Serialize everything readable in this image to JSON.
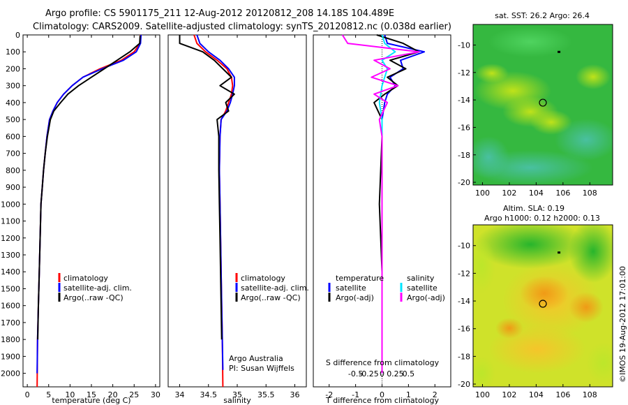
{
  "header": {
    "line1": "Argo profile: CS 5901175_211 12-Aug-2012 20120812_208 14.18S 104.489E",
    "line2": "Climatology: CARS2009. Satellite-adjusted climatology: synTS_20120812.nc (0.038d earlier)"
  },
  "colors": {
    "climatology": "#ff0000",
    "satellite_adj": "#0000ff",
    "argo": "#000000",
    "argo_salinity_diff": "#ff00ff",
    "satellite_salinity_diff": "#00e5ff"
  },
  "chart_data": [
    {
      "id": "temperature",
      "type": "line",
      "xlabel": "temperature (deg C)",
      "ylabel": "",
      "xlim": [
        -1,
        31
      ],
      "xticks": [
        0,
        5,
        10,
        15,
        20,
        25,
        30
      ],
      "ylim": [
        2080,
        0
      ],
      "yticks": [
        0,
        100,
        200,
        300,
        400,
        500,
        600,
        700,
        800,
        900,
        1000,
        1100,
        1200,
        1300,
        1400,
        1500,
        1600,
        1700,
        1800,
        1900,
        2000
      ],
      "legend": [
        "climatology",
        "satellite-adj. clim.",
        "Argo(..raw -QC)"
      ],
      "series": [
        {
          "name": "climatology",
          "color": "#ff0000",
          "x": [
            26.5,
            26.4,
            25,
            22,
            17,
            13,
            10.5,
            8.5,
            7,
            6,
            5.2,
            4.6,
            4.2,
            3.8,
            3.5,
            3.2,
            3,
            2.8,
            2.6,
            2.4,
            2.3
          ],
          "y": [
            0,
            50,
            100,
            150,
            200,
            250,
            300,
            350,
            400,
            450,
            500,
            600,
            700,
            800,
            900,
            1000,
            1200,
            1400,
            1600,
            1800,
            2080
          ]
        },
        {
          "name": "satellite-adj. clim.",
          "color": "#0000ff",
          "x": [
            26.6,
            26.5,
            25.5,
            22.5,
            17.5,
            13,
            10.5,
            8.5,
            7,
            6,
            5.2,
            4.6,
            4.2,
            3.8,
            3.5,
            3.2,
            3,
            2.8,
            2.6,
            2.4,
            2.3
          ],
          "y": [
            0,
            50,
            100,
            150,
            200,
            250,
            300,
            350,
            400,
            450,
            500,
            600,
            700,
            800,
            900,
            1000,
            1200,
            1400,
            1600,
            1800,
            2000
          ]
        },
        {
          "name": "Argo(..raw -QC)",
          "color": "#000000",
          "x": [
            26.4,
            26.3,
            24,
            21,
            18,
            15,
            12,
            9.5,
            7.8,
            6.2,
            5.4,
            4.7,
            4.2,
            3.8,
            3.5,
            3.2,
            3,
            2.8,
            2.6,
            2.45
          ],
          "y": [
            5,
            50,
            100,
            150,
            200,
            250,
            300,
            350,
            400,
            450,
            500,
            600,
            700,
            800,
            900,
            1000,
            1200,
            1400,
            1600,
            1800
          ]
        }
      ]
    },
    {
      "id": "salinity",
      "type": "line",
      "xlabel": "salinity",
      "xlim": [
        33.8,
        36.2
      ],
      "xticks": [
        34,
        34.5,
        35,
        35.5,
        36
      ],
      "ylim": [
        2080,
        0
      ],
      "legend": [
        "climatology",
        "satellite-adj. clim.",
        "Argo(..raw -QC)"
      ],
      "annotations": [
        "Argo Australia",
        "PI: Susan Wijffels"
      ],
      "series": [
        {
          "name": "climatology",
          "color": "#ff0000",
          "x": [
            34.25,
            34.3,
            34.45,
            34.65,
            34.82,
            34.9,
            34.92,
            34.9,
            34.85,
            34.8,
            34.72,
            34.7,
            34.69,
            34.7,
            34.71,
            34.72,
            34.73,
            34.74,
            34.75
          ],
          "y": [
            0,
            50,
            100,
            150,
            200,
            250,
            300,
            350,
            400,
            450,
            500,
            600,
            800,
            1000,
            1200,
            1400,
            1600,
            1800,
            2080
          ]
        },
        {
          "name": "satellite-adj. clim.",
          "color": "#0000ff",
          "x": [
            34.3,
            34.35,
            34.5,
            34.7,
            34.85,
            34.95,
            34.95,
            34.92,
            34.88,
            34.82,
            34.72,
            34.7,
            34.69,
            34.7,
            34.71,
            34.72,
            34.73,
            34.74,
            34.75
          ],
          "y": [
            0,
            50,
            100,
            150,
            200,
            250,
            300,
            350,
            400,
            450,
            500,
            600,
            800,
            1000,
            1200,
            1400,
            1600,
            1800,
            1980
          ]
        },
        {
          "name": "Argo(..raw -QC)",
          "color": "#000000",
          "x": [
            34.0,
            34.0,
            34.4,
            34.6,
            34.75,
            34.9,
            34.7,
            34.95,
            34.8,
            34.85,
            34.65,
            34.68,
            34.68,
            34.69,
            34.7,
            34.71,
            34.72,
            34.73
          ],
          "y": [
            0,
            50,
            100,
            150,
            200,
            250,
            300,
            350,
            400,
            450,
            500,
            600,
            800,
            1000,
            1200,
            1400,
            1600,
            1800
          ]
        }
      ]
    },
    {
      "id": "differences",
      "type": "line",
      "xlabel": "T difference from climatology",
      "xlabel_top": "S difference from climatology",
      "xlim": [
        -2.6,
        2.6
      ],
      "xticks": [
        -2,
        -1,
        0,
        1,
        2
      ],
      "xticks_top": [
        "-0.5",
        "-0.25",
        "0",
        "0.25",
        "0.5"
      ],
      "ylim": [
        2080,
        0
      ],
      "legend_titles": [
        "temperature",
        "salinity"
      ],
      "legend": [
        "satellite",
        "Argo(-adj)",
        "satellite",
        "Argo(-adj)"
      ],
      "series": [
        {
          "name": "temperature satellite",
          "color": "#0000ff",
          "x": [
            0.1,
            0.2,
            1.6,
            0.7,
            0.8,
            0.3,
            0.5,
            0.2,
            0.1,
            0,
            0,
            0,
            0,
            0
          ],
          "y": [
            0,
            50,
            100,
            150,
            200,
            250,
            300,
            350,
            400,
            500,
            600,
            1000,
            1400,
            2000
          ]
        },
        {
          "name": "temperature Argo(-adj)",
          "color": "#000000",
          "x": [
            -0.2,
            0.8,
            1.4,
            0.3,
            0.9,
            0.2,
            0.6,
            0.1,
            -0.3,
            0,
            0,
            -0.1,
            0,
            0
          ],
          "y": [
            0,
            50,
            100,
            150,
            200,
            250,
            300,
            350,
            400,
            500,
            600,
            1000,
            1400,
            2000
          ]
        },
        {
          "name": "salinity satellite",
          "color": "#00e5ff",
          "x": [
            0,
            0.1,
            0.5,
            0,
            0.2,
            0,
            -0.1,
            0,
            0,
            0,
            0,
            0,
            0
          ],
          "y": [
            0,
            50,
            100,
            150,
            200,
            300,
            400,
            500,
            600,
            1000,
            1400,
            1800,
            2000
          ]
        },
        {
          "name": "salinity Argo(-adj)",
          "color": "#ff00ff",
          "x": [
            -1.5,
            -1.3,
            1.4,
            -0.3,
            0.3,
            -0.4,
            0.6,
            -0.3,
            0.2,
            -0.1,
            0,
            0,
            0,
            0
          ],
          "y": [
            0,
            50,
            100,
            150,
            200,
            250,
            300,
            350,
            400,
            500,
            600,
            1000,
            1400,
            2000
          ]
        }
      ]
    },
    {
      "id": "sst_map",
      "type": "heatmap",
      "title": "sat. SST: 26.2 Argo: 26.4",
      "xticks": [
        100,
        102,
        104,
        106,
        108
      ],
      "yticks": [
        -10,
        -12,
        -14,
        -16,
        -18,
        -20
      ],
      "xlim": [
        99.3,
        109.7
      ],
      "ylim": [
        -20.2,
        -8.5
      ],
      "argo_position": [
        104.5,
        -14.2
      ],
      "marker": [
        105.7,
        -10.5
      ]
    },
    {
      "id": "sla_map",
      "type": "heatmap",
      "title_line1": "Altim. SLA: 0.19",
      "title_line2": "Argo h1000: 0.12 h2000: 0.13",
      "xticks": [
        100,
        102,
        104,
        106,
        108
      ],
      "yticks": [
        -10,
        -12,
        -14,
        -16,
        -18,
        -20
      ],
      "xlim": [
        99.3,
        109.7
      ],
      "ylim": [
        -20.2,
        -8.5
      ],
      "argo_position": [
        104.5,
        -14.2
      ],
      "marker": [
        105.7,
        -10.5
      ]
    }
  ],
  "side_label": "©IMOS 19-Aug-2012 17:01:00"
}
